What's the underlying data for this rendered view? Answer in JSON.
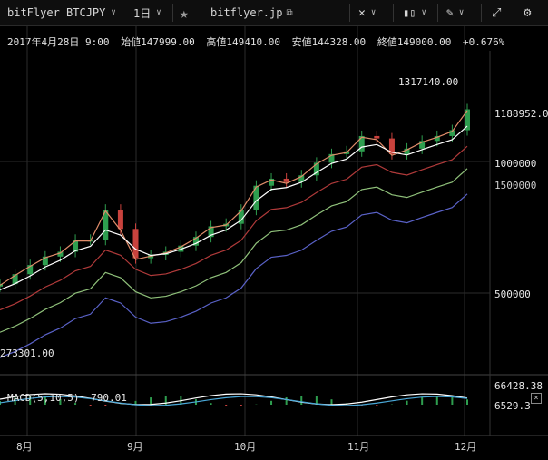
{
  "toolbar": {
    "symbol": "bitFlyer BTCJPY",
    "interval": "1日",
    "source": "bitflyer.jp",
    "icons": [
      "chevron-down-icon",
      "star-icon",
      "popout-icon",
      "crosshair-icon",
      "candlestick-icon",
      "pencil-icon",
      "fullscreen-icon",
      "settings-icon"
    ]
  },
  "ohlc": {
    "date": "2017年4月28日  9:00",
    "open_label": "始値",
    "open": "147999.00",
    "high_label": "高値",
    "high": "149410.00",
    "low_label": "安値",
    "low": "144328.00",
    "close_label": "終値",
    "close": "149000.00",
    "change": "+0.676%"
  },
  "chart_data": {
    "type": "line",
    "x_ticks": [
      "8月",
      "9月",
      "10月",
      "11月",
      "12月"
    ],
    "y_ticks": [
      "1500000",
      "1000000",
      "500000"
    ],
    "price_labels": {
      "high": "1317140.00",
      "current": "1188952.00",
      "left": "273301.00"
    },
    "series": [
      {
        "values": [
          290000,
          315000,
          340000,
          365000,
          380000,
          420000,
          420000,
          540000,
          460000,
          360000,
          370000,
          380000,
          400000,
          430000,
          470000,
          480000,
          540000,
          660000,
          700000,
          680000,
          720000,
          800000,
          860000,
          880000,
          1000000,
          980000,
          860000,
          900000,
          960000,
          1000000,
          1050000,
          1250000
        ]
      },
      {
        "values": [
          285000,
          300000,
          320000,
          345000,
          365000,
          395000,
          410000,
          470000,
          450000,
          400000,
          380000,
          385000,
          400000,
          420000,
          450000,
          470000,
          510000,
          600000,
          660000,
          670000,
          700000,
          760000,
          820000,
          850000,
          940000,
          960000,
          900000,
          880000,
          920000,
          960000,
          1000000,
          1120000
        ]
      }
    ],
    "macd": {
      "label": "MACD(5,10,5)",
      "value": "790.01",
      "upper": "66428.38",
      "lower": "6529.3"
    }
  },
  "colors": {
    "bg": "#000000",
    "grid": "#2b2b2b",
    "up": "#2e9e4f",
    "down": "#c9423d",
    "ma_fast": "#ffffff",
    "ma_red": "#b03a3a",
    "ma_green": "#8fc07a",
    "ma_blue": "#5a62c8"
  }
}
